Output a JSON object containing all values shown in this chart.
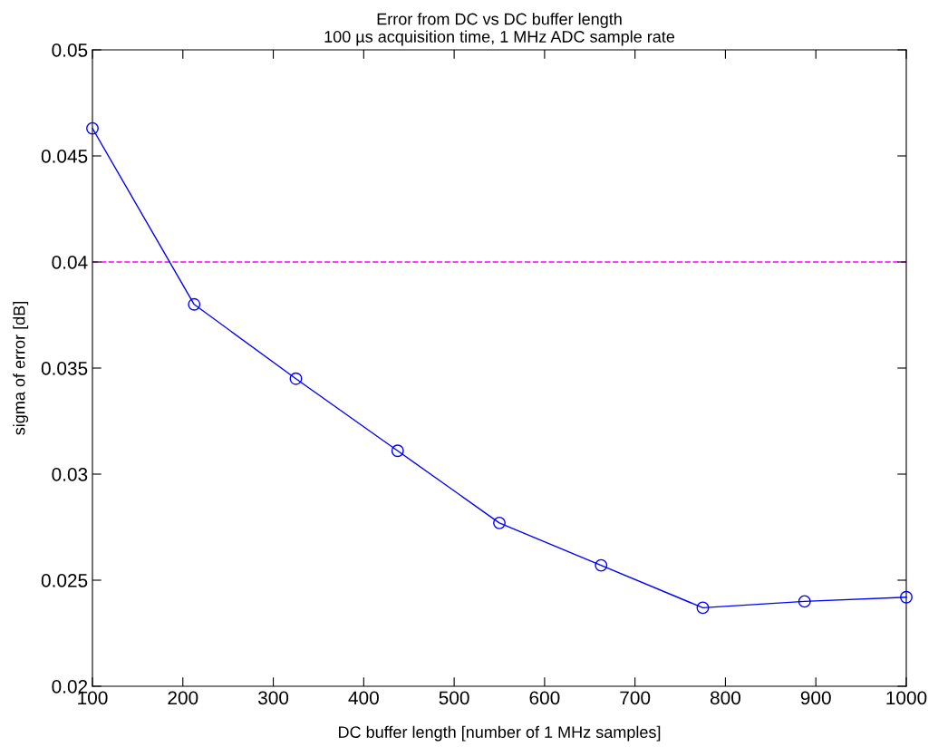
{
  "chart_data": {
    "type": "line",
    "title": "Error from DC vs DC buffer length\n100 µs acquisition time, 1 MHz ADC sample rate",
    "xlabel": "DC buffer length [number of 1 MHz samples]",
    "ylabel": "sigma of error [dB]",
    "x": [
      100,
      212.5,
      325,
      437.5,
      550,
      662.5,
      775,
      887.5,
      1000
    ],
    "series": [
      {
        "color": "#0000ff",
        "values": [
          0.0463,
          0.038,
          0.0345,
          0.0311,
          0.0277,
          0.0257,
          0.0237,
          0.024,
          0.0242
        ]
      }
    ],
    "marker": "circle",
    "line_style": "solid",
    "xlim": [
      100,
      1000
    ],
    "xticks": [
      100,
      200,
      300,
      400,
      500,
      600,
      700,
      800,
      900,
      1000
    ],
    "ylim": [
      0.02,
      0.05
    ],
    "yticks": [
      0.02,
      0.025,
      0.03,
      0.035,
      0.04,
      0.045,
      0.05
    ],
    "ref_lines": [
      {
        "axis": "y",
        "value": 0.04,
        "color": "#ff00ff",
        "line_style": "dashed"
      }
    ],
    "grid": false,
    "legend": false
  }
}
